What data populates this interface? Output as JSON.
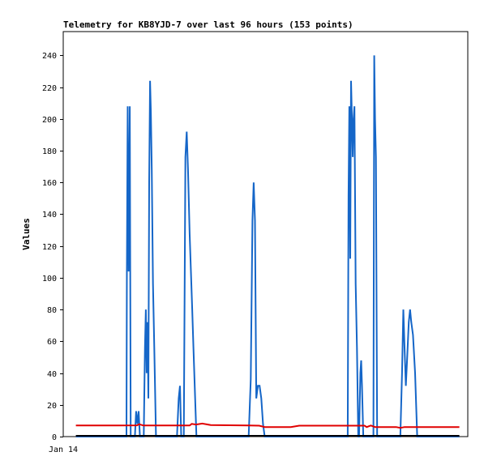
{
  "chart_data": {
    "type": "line",
    "title": "Telemetry for KB8YJD-7 over last 96 hours (153 points)",
    "xlabel": "",
    "ylabel": "Values",
    "x_tick_labels": [
      "Jan 14"
    ],
    "xlim": [
      0,
      96
    ],
    "ylim": [
      0,
      255
    ],
    "y_ticks": [
      0,
      20,
      40,
      60,
      80,
      100,
      120,
      140,
      160,
      180,
      200,
      220,
      240
    ],
    "grid": false,
    "legend": "none",
    "series": [
      {
        "color": "#1566c8",
        "points": [
          [
            3.0,
            0
          ],
          [
            15.0,
            0
          ],
          [
            15.1,
            104
          ],
          [
            15.3,
            208
          ],
          [
            15.5,
            104
          ],
          [
            15.8,
            208
          ],
          [
            16.0,
            0
          ],
          [
            17.0,
            0
          ],
          [
            17.3,
            16
          ],
          [
            17.6,
            8
          ],
          [
            17.9,
            16
          ],
          [
            18.2,
            0
          ],
          [
            19.1,
            0
          ],
          [
            19.4,
            56
          ],
          [
            19.6,
            80
          ],
          [
            19.8,
            40
          ],
          [
            20.0,
            72
          ],
          [
            20.2,
            24
          ],
          [
            20.4,
            160
          ],
          [
            20.6,
            224
          ],
          [
            20.8,
            204
          ],
          [
            21.0,
            168
          ],
          [
            21.3,
            96
          ],
          [
            21.6,
            56
          ],
          [
            22.0,
            0
          ],
          [
            27.0,
            0
          ],
          [
            27.4,
            24
          ],
          [
            27.7,
            32
          ],
          [
            28.0,
            0
          ],
          [
            28.6,
            0
          ],
          [
            29.0,
            176
          ],
          [
            29.3,
            192
          ],
          [
            29.6,
            168
          ],
          [
            30.0,
            128
          ],
          [
            30.3,
            104
          ],
          [
            30.6,
            80
          ],
          [
            30.9,
            56
          ],
          [
            31.3,
            24
          ],
          [
            31.6,
            0
          ],
          [
            44.0,
            0
          ],
          [
            44.5,
            36
          ],
          [
            44.9,
            136
          ],
          [
            45.2,
            160
          ],
          [
            45.5,
            136
          ],
          [
            45.8,
            24
          ],
          [
            46.2,
            32
          ],
          [
            46.6,
            32
          ],
          [
            47.0,
            24
          ],
          [
            47.4,
            8
          ],
          [
            47.8,
            0
          ],
          [
            67.5,
            0
          ],
          [
            67.7,
            152
          ],
          [
            67.9,
            208
          ],
          [
            68.1,
            112
          ],
          [
            68.3,
            224
          ],
          [
            68.5,
            200
          ],
          [
            68.7,
            176
          ],
          [
            68.9,
            200
          ],
          [
            69.1,
            208
          ],
          [
            69.4,
            96
          ],
          [
            69.7,
            56
          ],
          [
            70.0,
            0
          ],
          [
            70.2,
            0
          ],
          [
            70.5,
            40
          ],
          [
            70.7,
            48
          ],
          [
            70.9,
            32
          ],
          [
            71.2,
            0
          ],
          [
            73.6,
            0
          ],
          [
            73.8,
            240
          ],
          [
            74.0,
            200
          ],
          [
            74.2,
            176
          ],
          [
            74.5,
            0
          ],
          [
            80.0,
            0
          ],
          [
            80.4,
            40
          ],
          [
            80.7,
            80
          ],
          [
            81.0,
            56
          ],
          [
            81.3,
            32
          ],
          [
            81.6,
            48
          ],
          [
            82.0,
            72
          ],
          [
            82.3,
            80
          ],
          [
            82.6,
            72
          ],
          [
            83.0,
            64
          ],
          [
            83.5,
            40
          ],
          [
            84.0,
            0
          ],
          [
            94.0,
            0
          ]
        ]
      },
      {
        "color": "#e00000",
        "points": [
          [
            3.0,
            7
          ],
          [
            13.0,
            7
          ],
          [
            17.5,
            7.1
          ],
          [
            18.0,
            7.8
          ],
          [
            19.0,
            7
          ],
          [
            25.0,
            7
          ],
          [
            30.0,
            7
          ],
          [
            30.5,
            8
          ],
          [
            31.5,
            7.6
          ],
          [
            33.0,
            8.2
          ],
          [
            35.0,
            7.3
          ],
          [
            44.0,
            7
          ],
          [
            46.5,
            6.9
          ],
          [
            47.8,
            6
          ],
          [
            54.0,
            6
          ],
          [
            56.0,
            6.9
          ],
          [
            70.0,
            6.9
          ],
          [
            71.5,
            6.9
          ],
          [
            72.0,
            6
          ],
          [
            73.0,
            7
          ],
          [
            74.0,
            6
          ],
          [
            79.0,
            6
          ],
          [
            80.0,
            5.5
          ],
          [
            81.0,
            6
          ],
          [
            94.0,
            6
          ]
        ]
      },
      {
        "color": "#000000",
        "points": [
          [
            3.0,
            0.5
          ],
          [
            94.0,
            0.5
          ]
        ]
      }
    ]
  }
}
